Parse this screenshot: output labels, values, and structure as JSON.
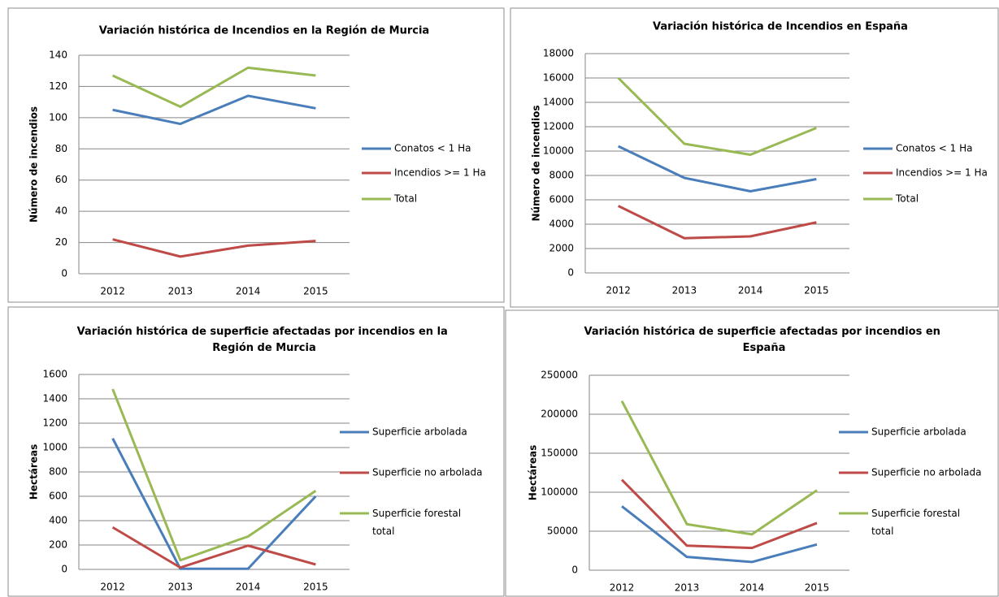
{
  "chart_data": [
    {
      "type": "line",
      "title": "Variación histórica de Incendios en la Región de Murcia",
      "y_label": "Número de incendios",
      "categories": [
        "2012",
        "2013",
        "2014",
        "2015"
      ],
      "ylim": [
        0,
        140
      ],
      "yticks": [
        0,
        20,
        40,
        60,
        80,
        100,
        120,
        140
      ],
      "grid": true,
      "legend": "right",
      "series": [
        {
          "name": "Conatos < 1 Ha",
          "color": "#4a7ebb",
          "values": [
            105,
            96,
            114,
            106
          ]
        },
        {
          "name": "Incendios >= 1 Ha",
          "color": "#be4b48",
          "values": [
            22,
            11,
            18,
            21
          ]
        },
        {
          "name": "Total",
          "color": "#98b954",
          "values": [
            127,
            107,
            132,
            127
          ]
        }
      ]
    },
    {
      "type": "line",
      "title": "Variación histórica de Incendios en España",
      "y_label": "Número de incendios",
      "categories": [
        "2012",
        "2013",
        "2014",
        "2015"
      ],
      "ylim": [
        0,
        18000
      ],
      "yticks": [
        0,
        2000,
        4000,
        6000,
        8000,
        10000,
        12000,
        14000,
        16000,
        18000
      ],
      "grid": true,
      "legend": "right",
      "series": [
        {
          "name": "Conatos < 1 Ha",
          "color": "#4a7ebb",
          "values": [
            10400,
            7800,
            6700,
            7700
          ]
        },
        {
          "name": "Incendios >= 1 Ha",
          "color": "#be4b48",
          "values": [
            5500,
            2850,
            3000,
            4150
          ]
        },
        {
          "name": "Total",
          "color": "#98b954",
          "values": [
            16000,
            10600,
            9700,
            11900
          ]
        }
      ]
    },
    {
      "type": "line",
      "title": "Variación histórica de superficie afectadas por incendios en la Región de Murcia",
      "y_label": "Hectáreas",
      "categories": [
        "2012",
        "2013",
        "2014",
        "2015"
      ],
      "ylim": [
        0,
        1600
      ],
      "yticks": [
        0,
        200,
        400,
        600,
        800,
        1000,
        1200,
        1400,
        1600
      ],
      "grid": true,
      "legend": "right",
      "series": [
        {
          "name": "Superficie arbolada",
          "color": "#4a7ebb",
          "values": [
            1075,
            5,
            5,
            600
          ]
        },
        {
          "name": "Superficie no arbolada",
          "color": "#be4b48",
          "values": [
            345,
            15,
            195,
            40
          ]
        },
        {
          "name": "Superficie forestal total",
          "color": "#98b954",
          "values": [
            1480,
            75,
            270,
            645
          ]
        }
      ]
    },
    {
      "type": "line",
      "title": "Variación histórica de superficie afectadas por incendios en España",
      "y_label": "Hectáreas",
      "categories": [
        "2012",
        "2013",
        "2014",
        "2015"
      ],
      "ylim": [
        0,
        250000
      ],
      "yticks": [
        0,
        50000,
        100000,
        150000,
        200000,
        250000
      ],
      "grid": true,
      "legend": "right",
      "series": [
        {
          "name": "Superficie arbolada",
          "color": "#4a7ebb",
          "values": [
            82000,
            17000,
            10500,
            33000
          ]
        },
        {
          "name": "Superficie no arbolada",
          "color": "#be4b48",
          "values": [
            116000,
            31500,
            28500,
            60500
          ]
        },
        {
          "name": "Superficie forestal total",
          "color": "#98b954",
          "values": [
            217000,
            59000,
            46000,
            102500
          ]
        }
      ]
    }
  ]
}
